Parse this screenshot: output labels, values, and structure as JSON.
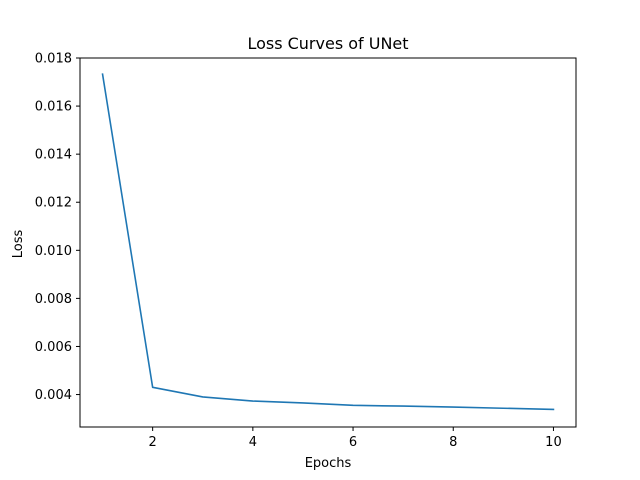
{
  "chart_data": {
    "type": "line",
    "title": "Loss Curves of UNet",
    "xlabel": "Epochs",
    "ylabel": "Loss",
    "xlim": [
      0.55,
      10.45
    ],
    "ylim": [
      0.00265,
      0.018
    ],
    "xticks": [
      2,
      4,
      6,
      8,
      10
    ],
    "xtick_labels": [
      "2",
      "4",
      "6",
      "8",
      "10"
    ],
    "yticks": [
      0.004,
      0.006,
      0.008,
      0.01,
      0.012,
      0.014,
      0.016,
      0.018
    ],
    "ytick_labels": [
      "0.004",
      "0.006",
      "0.008",
      "0.010",
      "0.012",
      "0.014",
      "0.016",
      "0.018"
    ],
    "grid": false,
    "series": [
      {
        "color": "#1f77b4",
        "x": [
          1,
          2,
          3,
          4,
          5,
          6,
          7,
          8,
          9,
          10
        ],
        "y": [
          0.01733,
          0.0043,
          0.0039,
          0.00373,
          0.00365,
          0.00355,
          0.00352,
          0.00348,
          0.00343,
          0.00338
        ]
      }
    ]
  }
}
